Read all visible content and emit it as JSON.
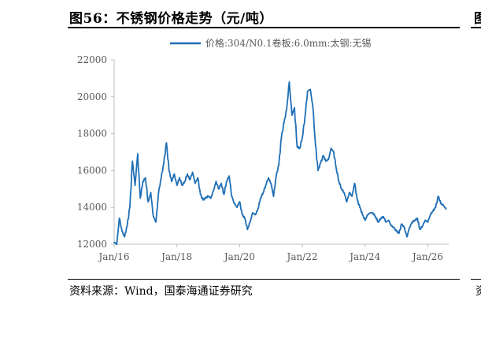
{
  "figure": {
    "title": "图56：不锈钢价格走势（元/吨）",
    "source": "资料来源：Wind，国泰海通证券研究",
    "next_title_fragment": "图",
    "next_source_fragment": "资"
  },
  "colors": {
    "line": "#1f6fb5",
    "axis": "#bfbfbf",
    "text": "#595959"
  },
  "chart_data": {
    "type": "line",
    "title": "",
    "xlabel": "",
    "ylabel": "",
    "ylim": [
      12000,
      22000
    ],
    "xlim": [
      "2016-01",
      "2026-09"
    ],
    "yticks": [
      12000,
      14000,
      16000,
      18000,
      20000,
      22000
    ],
    "xticks": [
      "Jan/16",
      "Jan/18",
      "Jan/20",
      "Jan/22",
      "Jan/24",
      "Jan/26"
    ],
    "legend": "top-center",
    "grid": false,
    "series": [
      {
        "name": "价格:304/N0.1卷板:6.0mm:太钢:无锡",
        "x": [
          "2016-01",
          "2016-02",
          "2016-03",
          "2016-04",
          "2016-05",
          "2016-06",
          "2016-07",
          "2016-08",
          "2016-09",
          "2016-10",
          "2016-11",
          "2016-12",
          "2017-01",
          "2017-02",
          "2017-03",
          "2017-04",
          "2017-05",
          "2017-06",
          "2017-07",
          "2017-08",
          "2017-09",
          "2017-10",
          "2017-11",
          "2017-12",
          "2018-01",
          "2018-02",
          "2018-03",
          "2018-04",
          "2018-05",
          "2018-06",
          "2018-07",
          "2018-08",
          "2018-09",
          "2018-10",
          "2018-11",
          "2018-12",
          "2019-01",
          "2019-02",
          "2019-03",
          "2019-04",
          "2019-05",
          "2019-06",
          "2019-07",
          "2019-08",
          "2019-09",
          "2019-10",
          "2019-11",
          "2019-12",
          "2020-01",
          "2020-02",
          "2020-03",
          "2020-04",
          "2020-05",
          "2020-06",
          "2020-07",
          "2020-08",
          "2020-09",
          "2020-10",
          "2020-11",
          "2020-12",
          "2021-01",
          "2021-02",
          "2021-03",
          "2021-04",
          "2021-05",
          "2021-06",
          "2021-07",
          "2021-08",
          "2021-09",
          "2021-10",
          "2021-11",
          "2021-12",
          "2022-01",
          "2022-02",
          "2022-03",
          "2022-04",
          "2022-05",
          "2022-06",
          "2022-07",
          "2022-08",
          "2022-09",
          "2022-10",
          "2022-11",
          "2022-12",
          "2023-01",
          "2023-02",
          "2023-03",
          "2023-04",
          "2023-05",
          "2023-06",
          "2023-07",
          "2023-08",
          "2023-09",
          "2023-10",
          "2023-11",
          "2023-12",
          "2024-01",
          "2024-02",
          "2024-03",
          "2024-04",
          "2024-05",
          "2024-06",
          "2024-07",
          "2024-08",
          "2024-09",
          "2024-10",
          "2024-11",
          "2024-12",
          "2025-01",
          "2025-02",
          "2025-03",
          "2025-04",
          "2025-05",
          "2025-06",
          "2025-07",
          "2025-08",
          "2025-09",
          "2025-10",
          "2025-11",
          "2025-12",
          "2026-01",
          "2026-02",
          "2026-03",
          "2026-04",
          "2026-05",
          "2026-06",
          "2026-07",
          "2026-08"
        ],
        "values": [
          12100,
          12000,
          13400,
          12700,
          12400,
          13000,
          14000,
          16500,
          15200,
          16900,
          14500,
          15400,
          15600,
          14300,
          14800,
          13500,
          13200,
          14800,
          15600,
          16400,
          17500,
          16000,
          15400,
          15800,
          15200,
          15600,
          15200,
          15400,
          15800,
          15500,
          15900,
          15300,
          15600,
          14700,
          14400,
          14500,
          14600,
          14500,
          14900,
          15400,
          15000,
          15300,
          14700,
          15400,
          15700,
          14600,
          14200,
          14000,
          14300,
          13600,
          13400,
          12800,
          13200,
          13700,
          13600,
          13900,
          14500,
          14800,
          15200,
          15600,
          15300,
          14600,
          15700,
          16300,
          17800,
          18600,
          19300,
          20800,
          19000,
          19400,
          17300,
          17200,
          17800,
          18900,
          20300,
          20400,
          19500,
          17400,
          16000,
          16400,
          16800,
          16500,
          16600,
          17200,
          17000,
          16100,
          15400,
          15000,
          14800,
          14300,
          14800,
          14600,
          15300,
          14400,
          14000,
          13600,
          13300,
          13600,
          13700,
          13700,
          13500,
          13200,
          13400,
          13500,
          13200,
          13300,
          13000,
          12900,
          12700,
          12600,
          13100,
          12900,
          12400,
          12900,
          13200,
          13300,
          13400,
          12800,
          13000,
          13300,
          13200,
          13600,
          13800,
          14000,
          14600,
          14200,
          14100,
          13900
        ]
      }
    ]
  }
}
